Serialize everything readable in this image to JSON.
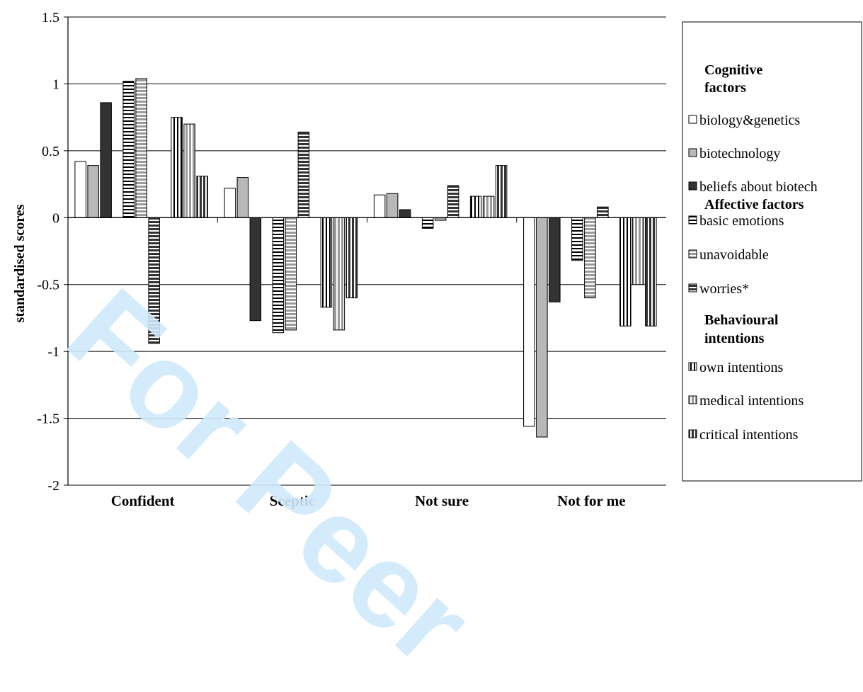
{
  "chart_data": {
    "type": "bar",
    "categories": [
      "Confident",
      "Sceptic",
      "Not sure",
      "Not for me"
    ],
    "ylabel": "standardised scores",
    "ylim": [
      -2,
      1.5
    ],
    "yticks": [
      1.5,
      1,
      0.5,
      0,
      -0.5,
      -1,
      -1.5,
      -2
    ],
    "ytick_labels": [
      "1.5",
      "1",
      "0.5",
      "0",
      "-0.5",
      "-1",
      "-1.5",
      "-2"
    ],
    "grid": true,
    "legend_position": "right",
    "groups": [
      {
        "name": "Cognitive factors",
        "series": [
          {
            "name": "biology&genetics",
            "values": [
              0.42,
              0.22,
              0.17,
              -1.56
            ],
            "fill": "#ffffff",
            "pattern": "none"
          },
          {
            "name": "biotechnology",
            "values": [
              0.39,
              0.3,
              0.18,
              -1.64
            ],
            "fill": "#b8b8b8",
            "pattern": "none"
          },
          {
            "name": "beliefs about biotech",
            "values": [
              0.86,
              -0.77,
              0.06,
              -0.63
            ],
            "fill": "#333333",
            "pattern": "none"
          }
        ]
      },
      {
        "name": "Affective factors",
        "series": [
          {
            "name": "basic emotions",
            "values": [
              1.02,
              -0.86,
              -0.08,
              -0.32
            ],
            "fill": "#ffffff",
            "pattern": "horizontal"
          },
          {
            "name": "unavoidable",
            "values": [
              1.04,
              -0.84,
              -0.02,
              -0.6
            ],
            "fill": "#9a9a9a",
            "pattern": "horizontal"
          },
          {
            "name": "worries*",
            "values": [
              -0.94,
              0.64,
              0.24,
              0.08
            ],
            "fill": "#333333",
            "pattern": "horizontal"
          }
        ]
      },
      {
        "name": "Behavioural intentions",
        "series": [
          {
            "name": "own intentions",
            "values": [
              0.75,
              -0.67,
              0.16,
              -0.81
            ],
            "fill": "#ffffff",
            "pattern": "vertical"
          },
          {
            "name": "medical intentions",
            "values": [
              0.7,
              -0.84,
              0.16,
              -0.5
            ],
            "fill": "#9a9a9a",
            "pattern": "vertical"
          },
          {
            "name": "critical intentions",
            "values": [
              0.31,
              -0.6,
              0.39,
              -0.81
            ],
            "fill": "#333333",
            "pattern": "vertical"
          }
        ]
      }
    ]
  },
  "legend": {
    "group_titles": [
      "Cognitive\nfactors",
      "Affective factors",
      "Behavioural\nintentions"
    ]
  },
  "watermark": "For Peer"
}
